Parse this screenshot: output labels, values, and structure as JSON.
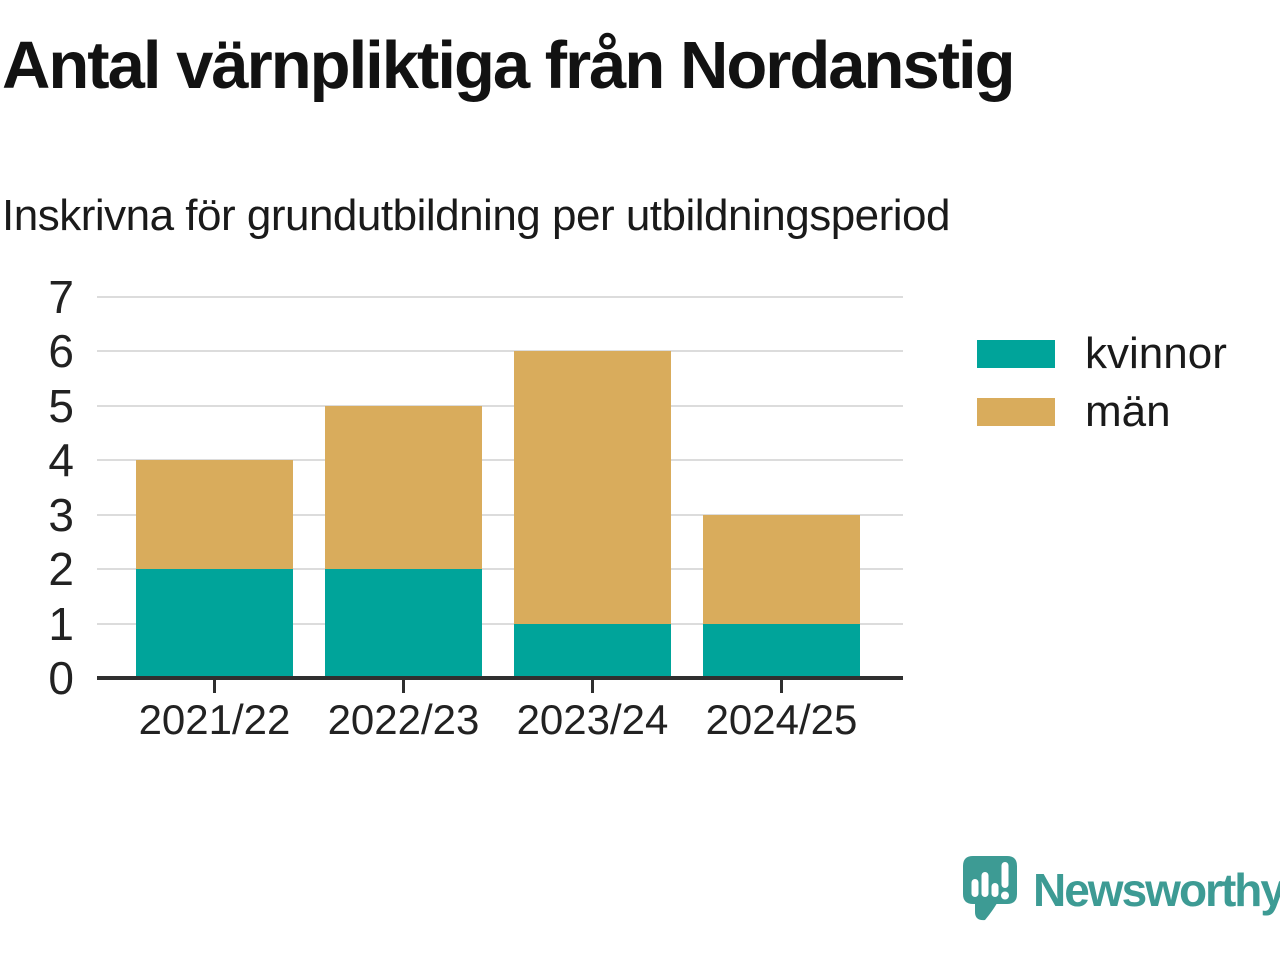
{
  "chart_data": {
    "type": "bar",
    "stacked": true,
    "title": "Antal värnpliktiga från Nordanstig",
    "subtitle": "Inskrivna för grundutbildning per utbildningsperiod",
    "categories": [
      "2021/22",
      "2022/23",
      "2023/24",
      "2024/25"
    ],
    "series": [
      {
        "name": "kvinnor",
        "color": "#00a49a",
        "values": [
          2,
          2,
          1,
          1
        ]
      },
      {
        "name": "män",
        "color": "#d9ac5c",
        "values": [
          2,
          3,
          5,
          2
        ]
      }
    ],
    "totals": [
      4,
      5,
      6,
      3
    ],
    "xlabel": "",
    "ylabel": "",
    "ylim": [
      0,
      7
    ],
    "yticks": [
      0,
      1,
      2,
      3,
      4,
      5,
      6,
      7
    ],
    "grid": true,
    "legend_position": "right"
  },
  "colors": {
    "kvinnor": "#00a49a",
    "man": "#d9ac5c",
    "gridline": "#dcdcdc",
    "axis": "#2f2f2f",
    "brand": "#3d9b94"
  },
  "footer": {
    "brand": "Newsworthy",
    "logo_icon": "newsworthy-speech-bubble-chart-icon"
  }
}
